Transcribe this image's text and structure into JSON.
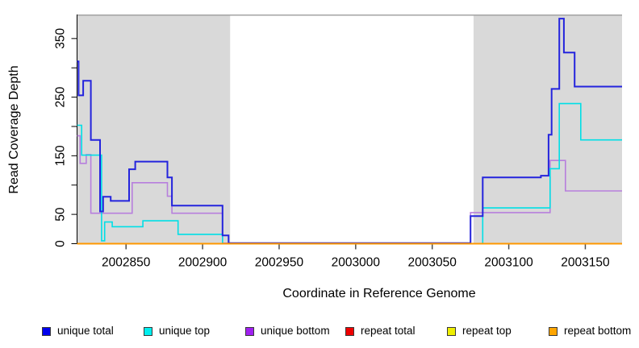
{
  "chart_data": {
    "type": "line",
    "line_style": "step-after",
    "title": "",
    "xlabel": "Coordinate in Reference Genome",
    "ylabel": "Read Coverage Depth",
    "xlim": [
      2002818,
      2003174
    ],
    "ylim": [
      0,
      391
    ],
    "x_ticks": [
      2002850,
      2002900,
      2002950,
      2003000,
      2003050,
      2003100,
      2003150
    ],
    "x_tick_labels": [
      "2002850",
      "2002900",
      "2002950",
      "2003000",
      "2003050",
      "2003100",
      "2003150"
    ],
    "y_ticks": [
      0,
      50,
      100,
      150,
      200,
      250,
      300,
      350
    ],
    "y_tick_labels": [
      "0",
      "50",
      "",
      "150",
      "",
      "250",
      "",
      "350"
    ],
    "grid": false,
    "background": "#ffffff",
    "shade_color": "#d9d9d9",
    "shaded_regions": [
      {
        "x0": 2002818,
        "x1": 2002918
      },
      {
        "x0": 2003077,
        "x1": 2003174
      }
    ],
    "series": [
      {
        "name": "unique total",
        "color": "#2424dd",
        "swatch": "#0000ee",
        "width": 2,
        "points": [
          [
            2002818,
            311
          ],
          [
            2002819,
            253
          ],
          [
            2002822,
            278
          ],
          [
            2002827,
            177
          ],
          [
            2002833,
            55
          ],
          [
            2002835,
            80
          ],
          [
            2002840,
            73
          ],
          [
            2002852,
            127
          ],
          [
            2002856,
            140
          ],
          [
            2002877,
            113
          ],
          [
            2002880,
            65
          ],
          [
            2002913,
            14
          ],
          [
            2002917,
            1
          ],
          [
            2003075,
            47
          ],
          [
            2003083,
            113
          ],
          [
            2003121,
            116
          ],
          [
            2003126,
            186
          ],
          [
            2003128,
            264
          ],
          [
            2003133,
            384
          ],
          [
            2003136,
            326
          ],
          [
            2003143,
            268
          ]
        ]
      },
      {
        "name": "unique top",
        "color": "#00dfe6",
        "swatch": "#00eeee",
        "width": 1.6,
        "points": [
          [
            2002818,
            202
          ],
          [
            2002821,
            151
          ],
          [
            2002834,
            5
          ],
          [
            2002836,
            37
          ],
          [
            2002841,
            29
          ],
          [
            2002861,
            39
          ],
          [
            2002884,
            16
          ],
          [
            2002913,
            0
          ],
          [
            2003083,
            61
          ],
          [
            2003127,
            128
          ],
          [
            2003133,
            239
          ],
          [
            2003147,
            177
          ]
        ]
      },
      {
        "name": "unique bottom",
        "color": "#b77fdd",
        "swatch": "#a020f0",
        "width": 1.6,
        "points": [
          [
            2002818,
            184
          ],
          [
            2002820,
            137
          ],
          [
            2002824,
            152
          ],
          [
            2002827,
            52
          ],
          [
            2002854,
            104
          ],
          [
            2002877,
            81
          ],
          [
            2002880,
            52
          ],
          [
            2002913,
            1
          ],
          [
            2003075,
            53
          ],
          [
            2003127,
            142
          ],
          [
            2003137,
            90
          ]
        ]
      },
      {
        "name": "repeat total",
        "color": "#dd0000",
        "swatch": "#ee0000",
        "width": 1.6,
        "points": [
          [
            2002818,
            0
          ]
        ]
      },
      {
        "name": "repeat top",
        "color": "#e6e600",
        "swatch": "#eeee00",
        "width": 1.6,
        "points": [
          [
            2002818,
            0
          ]
        ]
      },
      {
        "name": "repeat bottom",
        "color": "#ff9800",
        "swatch": "#ffa500",
        "width": 2,
        "points": [
          [
            2002818,
            0
          ]
        ]
      }
    ],
    "legend": {
      "position": "bottom",
      "entries": [
        "unique total",
        "unique top",
        "unique bottom",
        "repeat total",
        "repeat top",
        "repeat bottom"
      ]
    }
  }
}
